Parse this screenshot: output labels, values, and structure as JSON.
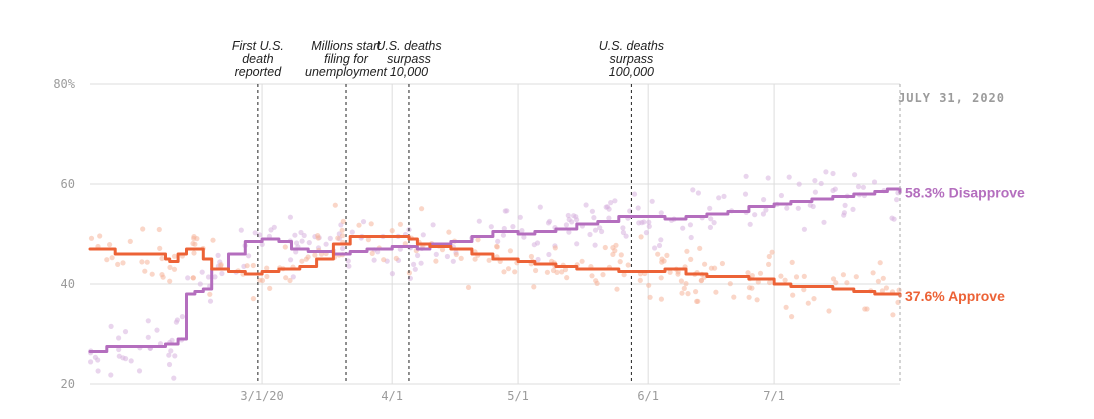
{
  "chart_data": {
    "type": "line",
    "title": "",
    "xlabel": "",
    "ylabel": "",
    "x_range": [
      "2020-01-20",
      "2020-07-31"
    ],
    "ylim": [
      20,
      80
    ],
    "y_ticks": [
      20,
      40,
      60,
      80
    ],
    "y_tick_labels": [
      "20",
      "40",
      "60",
      "80%"
    ],
    "x_ticks": [
      {
        "date": "2020-03-01",
        "label": "3/1/20"
      },
      {
        "date": "2020-04-01",
        "label": "4/1"
      },
      {
        "date": "2020-05-01",
        "label": "5/1"
      },
      {
        "date": "2020-06-01",
        "label": "6/1"
      },
      {
        "date": "2020-07-01",
        "label": "7/1"
      }
    ],
    "grid": true,
    "date_label": "JULY 31, 2020",
    "annotations": [
      {
        "date": "2020-02-29",
        "lines": [
          "First U.S.",
          "death",
          "reported"
        ]
      },
      {
        "date": "2020-03-21",
        "lines": [
          "Millions start",
          "filing for",
          "unemployment"
        ]
      },
      {
        "date": "2020-04-05",
        "lines": [
          "U.S. deaths",
          "surpass",
          "10,000"
        ]
      },
      {
        "date": "2020-05-28",
        "lines": [
          "U.S. deaths",
          "surpass",
          "100,000"
        ]
      }
    ],
    "series": [
      {
        "name": "Disapprove",
        "end_label": "58.3% Disapprove",
        "color": "#b46ebe",
        "dot_color": "#d7b3de",
        "x": [
          "2020-01-20",
          "2020-01-22",
          "2020-01-24",
          "2020-02-01",
          "2020-02-07",
          "2020-02-10",
          "2020-02-12",
          "2020-02-14",
          "2020-02-16",
          "2020-02-18",
          "2020-02-22",
          "2020-02-26",
          "2020-03-01",
          "2020-03-03",
          "2020-03-05",
          "2020-03-08",
          "2020-03-12",
          "2020-03-18",
          "2020-03-22",
          "2020-03-26",
          "2020-04-01",
          "2020-04-05",
          "2020-04-07",
          "2020-04-10",
          "2020-04-15",
          "2020-04-20",
          "2020-04-25",
          "2020-05-01",
          "2020-05-05",
          "2020-05-10",
          "2020-05-15",
          "2020-05-20",
          "2020-05-25",
          "2020-06-01",
          "2020-06-05",
          "2020-06-10",
          "2020-06-15",
          "2020-06-20",
          "2020-06-25",
          "2020-07-01",
          "2020-07-05",
          "2020-07-10",
          "2020-07-15",
          "2020-07-20",
          "2020-07-25",
          "2020-07-28",
          "2020-07-31"
        ],
        "values": [
          26.5,
          26.5,
          27.5,
          27.5,
          28.0,
          29.0,
          38.0,
          38.5,
          39.0,
          43.0,
          46.0,
          48.5,
          49.0,
          49.0,
          48.5,
          47.0,
          46.5,
          46.0,
          46.5,
          47.0,
          47.5,
          47.5,
          47.0,
          48.0,
          48.5,
          49.5,
          50.5,
          50.0,
          50.5,
          51.0,
          52.0,
          52.5,
          53.5,
          53.5,
          53.0,
          53.5,
          54.0,
          54.5,
          55.5,
          56.0,
          56.5,
          57.0,
          57.5,
          58.0,
          58.5,
          59.0,
          58.3
        ]
      },
      {
        "name": "Approve",
        "end_label": "37.6% Approve",
        "color": "#ec6236",
        "dot_color": "#f5b59a",
        "x": [
          "2020-01-20",
          "2020-01-22",
          "2020-01-26",
          "2020-02-01",
          "2020-02-07",
          "2020-02-08",
          "2020-02-10",
          "2020-02-12",
          "2020-02-14",
          "2020-02-16",
          "2020-02-18",
          "2020-02-22",
          "2020-02-26",
          "2020-03-01",
          "2020-03-05",
          "2020-03-10",
          "2020-03-14",
          "2020-03-18",
          "2020-03-22",
          "2020-03-26",
          "2020-04-01",
          "2020-04-05",
          "2020-04-07",
          "2020-04-10",
          "2020-04-15",
          "2020-04-20",
          "2020-04-25",
          "2020-05-01",
          "2020-05-05",
          "2020-05-10",
          "2020-05-15",
          "2020-05-20",
          "2020-05-25",
          "2020-06-01",
          "2020-06-05",
          "2020-06-10",
          "2020-06-15",
          "2020-06-20",
          "2020-06-25",
          "2020-07-01",
          "2020-07-05",
          "2020-07-10",
          "2020-07-15",
          "2020-07-20",
          "2020-07-25",
          "2020-07-28",
          "2020-07-31"
        ],
        "values": [
          47.0,
          47.0,
          46.0,
          46.0,
          45.0,
          44.5,
          46.0,
          47.0,
          47.0,
          45.0,
          43.0,
          42.5,
          42.0,
          42.5,
          43.0,
          43.5,
          45.0,
          48.0,
          49.5,
          49.5,
          49.5,
          49.0,
          48.0,
          47.5,
          47.0,
          46.0,
          45.0,
          44.5,
          44.0,
          43.5,
          43.0,
          43.0,
          42.5,
          42.5,
          43.0,
          42.0,
          41.5,
          41.5,
          41.0,
          40.0,
          39.5,
          39.5,
          39.0,
          38.5,
          38.0,
          38.0,
          37.6
        ]
      }
    ]
  }
}
